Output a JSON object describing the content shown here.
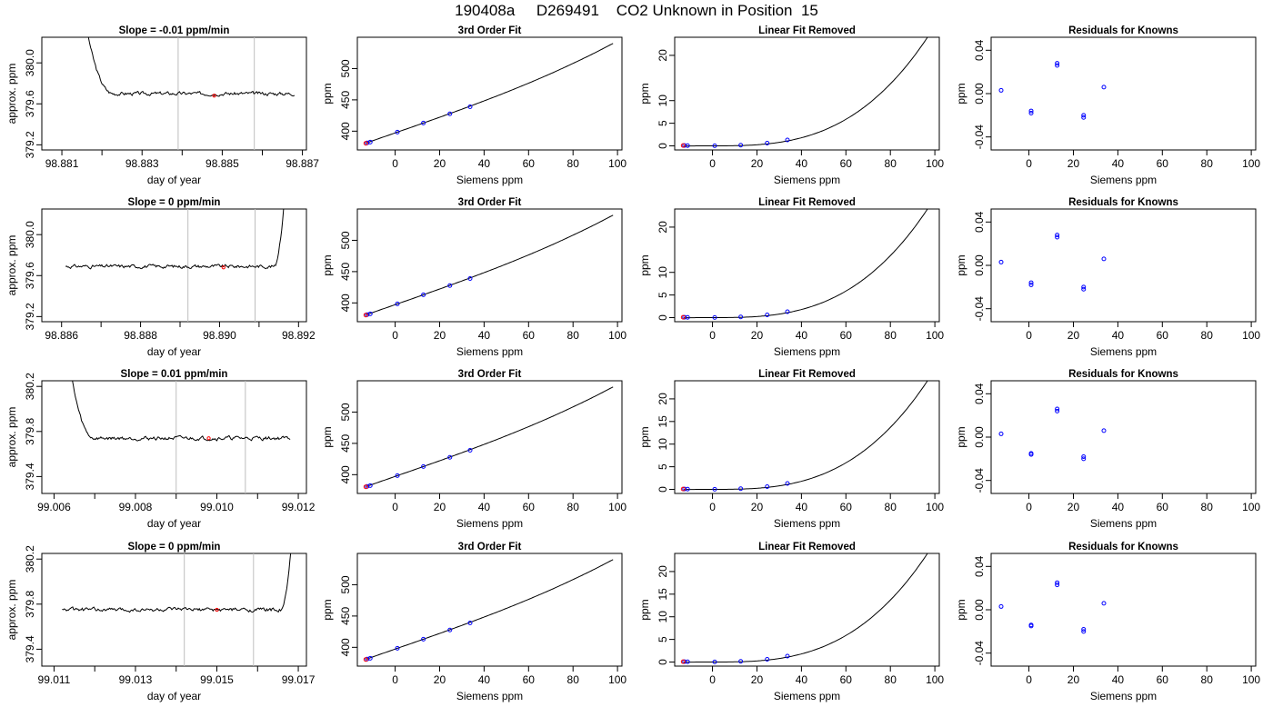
{
  "page": {
    "title": "190408a     D269491    CO2 Unknown in Position  15"
  },
  "colors": {
    "axis": "#000000",
    "trace": "#000000",
    "fit_curve": "#000000",
    "marker_vertical_line": "#bebebe",
    "known_points": "#0000ff",
    "residual_points": "#0000ff",
    "unknown_point": "#ff0000"
  },
  "chart_data": [
    {
      "type": "line",
      "panel": "time-trace",
      "row": 1,
      "title": "Slope =  -0.01  ppm/min",
      "xlabel": "day of year",
      "ylabel": "approx. ppm",
      "xlim": [
        98.8805,
        98.8871
      ],
      "ylim": [
        379.15,
        380.25
      ],
      "xticks": [
        98.881,
        98.882,
        98.883,
        98.884,
        98.885,
        98.886,
        98.887
      ],
      "xtick_labels": [
        "98.881",
        "",
        "98.883",
        "",
        "98.885",
        "",
        "98.887"
      ],
      "yticks": [
        379.2,
        379.6,
        380.0
      ],
      "ytick_labels": [
        "379.2",
        "379.6",
        "380.0"
      ],
      "markers_x": [
        98.8839,
        98.8858
      ],
      "unknown_point": {
        "x": 98.8848,
        "y": 379.68
      },
      "trace": {
        "x_start": 98.8815,
        "x_end": 98.8868,
        "plateau": 379.7,
        "noise": 0.02,
        "spike": {
          "side": "start",
          "peak": 380.6,
          "settle_x": 98.8823
        }
      }
    },
    {
      "type": "scatter",
      "panel": "cubic-fit",
      "row": 1,
      "title": "3rd Order Fit",
      "xlabel": "Siemens ppm",
      "ylabel": "ppm",
      "xlim": [
        -17,
        102
      ],
      "ylim": [
        370,
        550
      ],
      "xticks": [
        0,
        20,
        40,
        60,
        80,
        100
      ],
      "yticks": [
        400,
        450,
        500
      ],
      "points": [
        [
          -12.6,
          381.2
        ],
        [
          -11.2,
          382.6
        ],
        [
          1,
          398.5
        ],
        [
          12.7,
          413
        ],
        [
          24.6,
          427.7
        ],
        [
          33.7,
          439
        ]
      ],
      "unknown_point": {
        "x": -13.2,
        "y": 380.6
      },
      "curve": {
        "x_start": -13,
        "x_end": 98,
        "coef": [
          397.2,
          1.24,
          0.0001,
          2.18e-05
        ]
      }
    },
    {
      "type": "scatter",
      "panel": "linear-removed",
      "row": 1,
      "title": "Linear Fit Removed",
      "xlabel": "Siemens ppm",
      "ylabel": "ppm",
      "xlim": [
        -17,
        102
      ],
      "ylim": [
        -0.9,
        24
      ],
      "xticks": [
        0,
        20,
        40,
        60,
        80,
        100
      ],
      "yticks": [
        0,
        5,
        10,
        20
      ],
      "points": [
        [
          -12.6,
          0.08
        ],
        [
          -11.2,
          0.06
        ],
        [
          1,
          0.02
        ],
        [
          12.7,
          0.15
        ],
        [
          24.6,
          0.6
        ],
        [
          33.7,
          1.3
        ]
      ],
      "unknown_point": {
        "x": -13.2,
        "y": 0.08
      },
      "curve": {
        "x_start": -13,
        "x_end": 98,
        "coef": [
          0,
          0,
          0.0001,
          2.55e-05
        ]
      }
    },
    {
      "type": "scatter",
      "panel": "residuals",
      "row": 1,
      "title": "Residuals for Knowns",
      "xlabel": "Siemens ppm",
      "ylabel": "ppm",
      "xlim": [
        -17,
        102
      ],
      "ylim": [
        -0.052,
        0.052
      ],
      "xticks": [
        -20,
        0,
        20,
        40,
        60,
        80,
        100
      ],
      "xtick_labels": [
        "",
        "0",
        "20",
        "40",
        "60",
        "80",
        "100"
      ],
      "yticks": [
        -0.04,
        0.0,
        0.04
      ],
      "ytick_labels": [
        "-0.04",
        "0.00",
        "0.04"
      ],
      "points": [
        [
          -12.5,
          0.003
        ],
        [
          1,
          -0.016
        ],
        [
          1,
          -0.018
        ],
        [
          12.7,
          0.026
        ],
        [
          12.7,
          0.028
        ],
        [
          24.6,
          -0.02
        ],
        [
          24.6,
          -0.022
        ],
        [
          33.7,
          0.006
        ]
      ]
    },
    {
      "type": "line",
      "panel": "time-trace",
      "row": 2,
      "title": "Slope =  0  ppm/min",
      "xlabel": "day of year",
      "ylabel": "approx. ppm",
      "xlim": [
        98.8855,
        98.8922
      ],
      "ylim": [
        379.15,
        380.25
      ],
      "xticks": [
        98.886,
        98.887,
        98.888,
        98.889,
        98.89,
        98.891,
        98.892
      ],
      "xtick_labels": [
        "98.886",
        "",
        "98.888",
        "",
        "98.890",
        "",
        "98.892"
      ],
      "yticks": [
        379.2,
        379.6,
        380.0
      ],
      "ytick_labels": [
        "379.2",
        "379.6",
        "380.0"
      ],
      "markers_x": [
        98.8892,
        98.8909
      ],
      "unknown_point": {
        "x": 98.8901,
        "y": 379.68
      },
      "trace": {
        "x_start": 98.8861,
        "x_end": 98.8917,
        "plateau": 379.69,
        "noise": 0.02,
        "spike": {
          "side": "end",
          "peak": 380.6,
          "settle_x": 98.8914
        }
      }
    },
    {
      "type": "scatter",
      "panel": "cubic-fit",
      "row": 2,
      "title": "3rd Order Fit",
      "xlabel": "Siemens ppm",
      "ylabel": "ppm",
      "xlim": [
        -17,
        102
      ],
      "ylim": [
        370,
        550
      ],
      "xticks": [
        0,
        20,
        40,
        60,
        80,
        100
      ],
      "yticks": [
        400,
        450,
        500
      ],
      "points": [
        [
          -12.6,
          381.2
        ],
        [
          -11.2,
          382.6
        ],
        [
          1,
          398.5
        ],
        [
          12.7,
          413
        ],
        [
          24.6,
          427.7
        ],
        [
          33.7,
          439
        ]
      ],
      "unknown_point": {
        "x": -13.2,
        "y": 380.6
      },
      "curve": {
        "x_start": -13,
        "x_end": 98,
        "coef": [
          397.2,
          1.24,
          0.0001,
          2.18e-05
        ]
      }
    },
    {
      "type": "scatter",
      "panel": "linear-removed",
      "row": 2,
      "title": "Linear Fit Removed",
      "xlabel": "Siemens ppm",
      "ylabel": "ppm",
      "xlim": [
        -17,
        102
      ],
      "ylim": [
        -0.9,
        24
      ],
      "xticks": [
        0,
        20,
        40,
        60,
        80,
        100
      ],
      "yticks": [
        0,
        5,
        10,
        20
      ],
      "points": [
        [
          -12.6,
          0.08
        ],
        [
          -11.2,
          0.06
        ],
        [
          1,
          0.02
        ],
        [
          12.7,
          0.15
        ],
        [
          24.6,
          0.6
        ],
        [
          33.7,
          1.3
        ]
      ],
      "unknown_point": {
        "x": -13.2,
        "y": 0.08
      },
      "curve": {
        "x_start": -13,
        "x_end": 98,
        "coef": [
          0,
          0,
          0.0001,
          2.55e-05
        ]
      }
    },
    {
      "type": "scatter",
      "panel": "residuals",
      "row": 2,
      "title": "Residuals for Knowns",
      "xlabel": "Siemens ppm",
      "ylabel": "ppm",
      "xlim": [
        -17,
        102
      ],
      "ylim": [
        -0.052,
        0.052
      ],
      "xticks": [
        -20,
        0,
        20,
        40,
        60,
        80,
        100
      ],
      "xtick_labels": [
        "",
        "0",
        "20",
        "40",
        "60",
        "80",
        "100"
      ],
      "yticks": [
        -0.04,
        0.0,
        0.04
      ],
      "ytick_labels": [
        "-0.04",
        "0.00",
        "0.04"
      ],
      "points": [
        [
          -12.5,
          0.003
        ],
        [
          1,
          -0.016
        ],
        [
          1,
          -0.018
        ],
        [
          12.7,
          0.026
        ],
        [
          12.7,
          0.028
        ],
        [
          24.6,
          -0.02
        ],
        [
          24.6,
          -0.022
        ],
        [
          33.7,
          0.006
        ]
      ]
    },
    {
      "type": "line",
      "panel": "time-trace",
      "row": 3,
      "title": "Slope =  0.01  ppm/min",
      "xlabel": "day of year",
      "ylabel": "approx. ppm",
      "xlim": [
        99.0057,
        99.0122
      ],
      "ylim": [
        379.25,
        380.25
      ],
      "xticks": [
        99.006,
        99.007,
        99.008,
        99.009,
        99.01,
        99.011,
        99.012
      ],
      "xtick_labels": [
        "99.006",
        "",
        "99.008",
        "",
        "99.010",
        "",
        "99.012"
      ],
      "yticks": [
        379.4,
        379.8,
        380.2
      ],
      "ytick_labels": [
        "379.4",
        "379.8",
        "380.2"
      ],
      "markers_x": [
        99.009,
        99.0107
      ],
      "unknown_point": {
        "x": 99.0098,
        "y": 379.74
      },
      "trace": {
        "x_start": 99.0063,
        "x_end": 99.0118,
        "plateau": 379.74,
        "noise": 0.02,
        "spike": {
          "side": "start",
          "peak": 380.6,
          "settle_x": 99.007
        }
      }
    },
    {
      "type": "scatter",
      "panel": "cubic-fit",
      "row": 3,
      "title": "3rd Order Fit",
      "xlabel": "Siemens ppm",
      "ylabel": "ppm",
      "xlim": [
        -17,
        102
      ],
      "ylim": [
        370,
        550
      ],
      "xticks": [
        0,
        20,
        40,
        60,
        80,
        100
      ],
      "yticks": [
        400,
        450,
        500
      ],
      "points": [
        [
          -12.6,
          381.2
        ],
        [
          -11.2,
          382.6
        ],
        [
          1,
          398.5
        ],
        [
          12.7,
          413
        ],
        [
          24.6,
          427.7
        ],
        [
          33.7,
          439
        ]
      ],
      "unknown_point": {
        "x": -13.2,
        "y": 380.6
      },
      "curve": {
        "x_start": -13,
        "x_end": 98,
        "coef": [
          397.2,
          1.24,
          0.0001,
          2.18e-05
        ]
      }
    },
    {
      "type": "scatter",
      "panel": "linear-removed",
      "row": 3,
      "title": "Linear Fit Removed",
      "xlabel": "Siemens ppm",
      "ylabel": "ppm",
      "xlim": [
        -17,
        102
      ],
      "ylim": [
        -0.9,
        24
      ],
      "xticks": [
        0,
        20,
        40,
        60,
        80,
        100
      ],
      "yticks": [
        0,
        5,
        10,
        15,
        20
      ],
      "points": [
        [
          -12.6,
          0.08
        ],
        [
          -11.2,
          0.06
        ],
        [
          1,
          0.02
        ],
        [
          12.7,
          0.15
        ],
        [
          24.6,
          0.6
        ],
        [
          33.7,
          1.3
        ]
      ],
      "unknown_point": {
        "x": -13.2,
        "y": 0.08
      },
      "curve": {
        "x_start": -13,
        "x_end": 98,
        "coef": [
          0,
          0,
          0.0001,
          2.55e-05
        ]
      }
    },
    {
      "type": "scatter",
      "panel": "residuals",
      "row": 3,
      "title": "Residuals for Knowns",
      "xlabel": "Siemens ppm",
      "ylabel": "ppm",
      "xlim": [
        -17,
        102
      ],
      "ylim": [
        -0.052,
        0.052
      ],
      "xticks": [
        -20,
        0,
        20,
        40,
        60,
        80,
        100
      ],
      "xtick_labels": [
        "",
        "0",
        "20",
        "40",
        "60",
        "80",
        "100"
      ],
      "yticks": [
        -0.04,
        0.0,
        0.04
      ],
      "ytick_labels": [
        "-0.04",
        "0.00",
        "0.04"
      ],
      "points": [
        [
          -12.5,
          0.003
        ],
        [
          1,
          -0.015
        ],
        [
          1,
          -0.016
        ],
        [
          12.7,
          0.024
        ],
        [
          12.7,
          0.026
        ],
        [
          24.6,
          -0.018
        ],
        [
          24.6,
          -0.02
        ],
        [
          33.7,
          0.006
        ]
      ]
    },
    {
      "type": "line",
      "panel": "time-trace",
      "row": 4,
      "title": "Slope =  0  ppm/min",
      "xlabel": "day of year",
      "ylabel": "approx. ppm",
      "xlim": [
        99.0107,
        99.0172
      ],
      "ylim": [
        379.25,
        380.25
      ],
      "xticks": [
        99.011,
        99.012,
        99.013,
        99.014,
        99.015,
        99.016,
        99.017
      ],
      "xtick_labels": [
        "99.011",
        "",
        "99.013",
        "",
        "99.015",
        "",
        "99.017"
      ],
      "yticks": [
        379.4,
        379.8,
        380.2
      ],
      "ytick_labels": [
        "379.4",
        "379.8",
        "380.2"
      ],
      "markers_x": [
        99.0142,
        99.0159
      ],
      "unknown_point": {
        "x": 99.015,
        "y": 379.75
      },
      "trace": {
        "x_start": 99.0112,
        "x_end": 99.0169,
        "plateau": 379.75,
        "noise": 0.02,
        "spike": {
          "side": "end",
          "peak": 380.6,
          "settle_x": 99.0166
        }
      }
    },
    {
      "type": "scatter",
      "panel": "cubic-fit",
      "row": 4,
      "title": "3rd Order Fit",
      "xlabel": "Siemens ppm",
      "ylabel": "ppm",
      "xlim": [
        -17,
        102
      ],
      "ylim": [
        370,
        550
      ],
      "xticks": [
        0,
        20,
        40,
        60,
        80,
        100
      ],
      "yticks": [
        400,
        450,
        500
      ],
      "points": [
        [
          -12.6,
          381.2
        ],
        [
          -11.2,
          382.6
        ],
        [
          1,
          398.5
        ],
        [
          12.7,
          413
        ],
        [
          24.6,
          427.7
        ],
        [
          33.7,
          439
        ]
      ],
      "unknown_point": {
        "x": -13.2,
        "y": 380.6
      },
      "curve": {
        "x_start": -13,
        "x_end": 98,
        "coef": [
          397.2,
          1.24,
          0.0001,
          2.18e-05
        ]
      }
    },
    {
      "type": "scatter",
      "panel": "linear-removed",
      "row": 4,
      "title": "Linear Fit Removed",
      "xlabel": "Siemens ppm",
      "ylabel": "ppm",
      "xlim": [
        -17,
        102
      ],
      "ylim": [
        -0.9,
        24
      ],
      "xticks": [
        0,
        20,
        40,
        60,
        80,
        100
      ],
      "yticks": [
        0,
        5,
        10,
        15,
        20
      ],
      "points": [
        [
          -12.6,
          0.08
        ],
        [
          -11.2,
          0.06
        ],
        [
          1,
          0.02
        ],
        [
          12.7,
          0.15
        ],
        [
          24.6,
          0.6
        ],
        [
          33.7,
          1.3
        ]
      ],
      "unknown_point": {
        "x": -13.2,
        "y": 0.08
      },
      "curve": {
        "x_start": -13,
        "x_end": 98,
        "coef": [
          0,
          0,
          0.0001,
          2.55e-05
        ]
      }
    },
    {
      "type": "scatter",
      "panel": "residuals",
      "row": 4,
      "title": "Residuals for Knowns",
      "xlabel": "Siemens ppm",
      "ylabel": "ppm",
      "xlim": [
        -17,
        102
      ],
      "ylim": [
        -0.052,
        0.052
      ],
      "xticks": [
        -20,
        0,
        20,
        40,
        60,
        80,
        100
      ],
      "xtick_labels": [
        "",
        "0",
        "20",
        "40",
        "60",
        "80",
        "100"
      ],
      "yticks": [
        -0.04,
        0.0,
        0.04
      ],
      "ytick_labels": [
        "-0.04",
        "0.00",
        "0.04"
      ],
      "points": [
        [
          -12.5,
          0.003
        ],
        [
          1,
          -0.014
        ],
        [
          1,
          -0.015
        ],
        [
          12.7,
          0.023
        ],
        [
          12.7,
          0.025
        ],
        [
          24.6,
          -0.018
        ],
        [
          24.6,
          -0.02
        ],
        [
          33.7,
          0.006
        ]
      ]
    }
  ]
}
